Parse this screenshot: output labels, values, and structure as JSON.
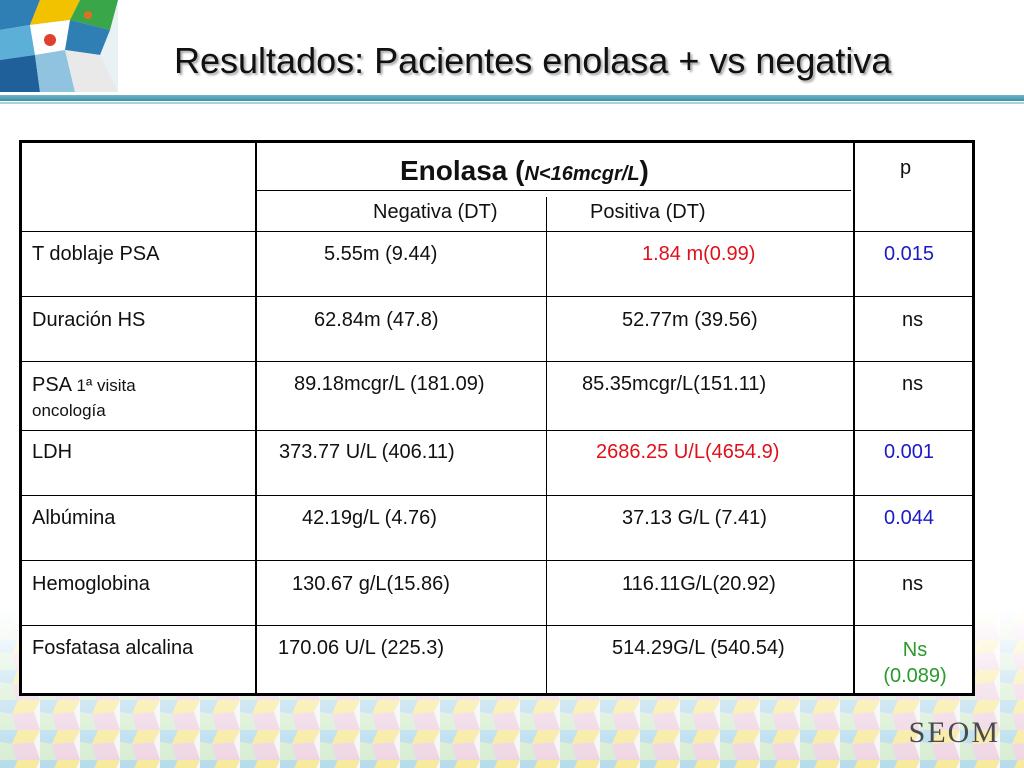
{
  "slide": {
    "title": "Resultados: Pacientes enolasa + vs negativa",
    "logo_text": "SEOM"
  },
  "table": {
    "header": {
      "enolasa_label": "Enolasa (",
      "enolasa_norm": "N<16mcgr/L",
      "enolasa_close": ")",
      "p_label": "p",
      "neg_label": "Negativa (DT)",
      "pos_label": "Positiva (DT)"
    },
    "rows": [
      {
        "label": "T doblaje PSA",
        "neg": "5.55m  (9.44)",
        "pos": "1.84 m(0.99)",
        "p": "0.015"
      },
      {
        "label": "Duración HS",
        "neg": "62.84m (47.8)",
        "pos": "52.77m (39.56)",
        "p": "ns"
      },
      {
        "label": "PSA ",
        "label_small_1": "1ª visita",
        "label_small_2": "oncología",
        "neg": "89.18mcgr/L (181.09)",
        "pos": "85.35mcgr/L(151.11)",
        "p": "ns"
      },
      {
        "label": "LDH",
        "neg": "373.77 U/L (406.11)",
        "pos": "2686.25 U/L(4654.9)",
        "p": "0.001"
      },
      {
        "label": "Albúmina",
        "neg": "42.19g/L (4.76)",
        "pos": "37.13 G/L (7.41)",
        "p": "0.044"
      },
      {
        "label": "Hemoglobina",
        "neg": "130.67 g/L(15.86)",
        "pos": "116.11G/L(20.92)",
        "p": "ns"
      },
      {
        "label": "Fosfatasa alcalina",
        "neg": "170.06 U/L  (225.3)",
        "pos": "514.29G/L (540.54)",
        "p": "Ns",
        "p_line2": "(0.089)"
      }
    ]
  },
  "colors": {
    "significant_red": "#e0101a",
    "significant_blue": "#1a1ac8",
    "ns_green": "#2a9a2a",
    "rule": "#3f8fa6"
  }
}
